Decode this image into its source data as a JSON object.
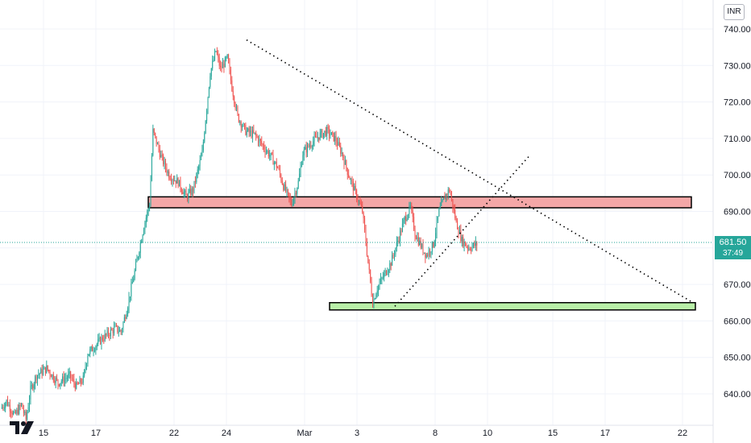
{
  "currency": "INR",
  "last_price": "681.50",
  "countdown": "37:49",
  "colors": {
    "up": "#26a69a",
    "down": "#ef5350",
    "resistance_fill": "#f4a7a7",
    "support_fill": "#b9f0a8",
    "grid": "#f0f3fa"
  },
  "chart_data": {
    "type": "candlestick",
    "title": "",
    "ylim": [
      631,
      744
    ],
    "y_ticks": [
      "740.00",
      "730.00",
      "720.00",
      "710.00",
      "700.00",
      "690.00",
      "680.00",
      "670.00",
      "660.00",
      "650.00",
      "640.00"
    ],
    "x_ticks": [
      "15",
      "17",
      "22",
      "24",
      "Mar",
      "3",
      "8",
      "10",
      "15",
      "17",
      "22"
    ],
    "grid": true,
    "price_path": [
      [
        0,
        636
      ],
      [
        5,
        638
      ],
      [
        12,
        634
      ],
      [
        18,
        637
      ],
      [
        22,
        633
      ],
      [
        26,
        641
      ],
      [
        31,
        645
      ],
      [
        40,
        647
      ],
      [
        50,
        643
      ],
      [
        60,
        645
      ],
      [
        66,
        642
      ],
      [
        72,
        644
      ],
      [
        76,
        651
      ],
      [
        88,
        655
      ],
      [
        100,
        658
      ],
      [
        105,
        657
      ],
      [
        110,
        663
      ],
      [
        118,
        675
      ],
      [
        125,
        686
      ],
      [
        130,
        692
      ],
      [
        133,
        712
      ],
      [
        140,
        705
      ],
      [
        147,
        700
      ],
      [
        155,
        698
      ],
      [
        162,
        694
      ],
      [
        168,
        696
      ],
      [
        176,
        706
      ],
      [
        183,
        728
      ],
      [
        188,
        734
      ],
      [
        192,
        729
      ],
      [
        198,
        732
      ],
      [
        202,
        724
      ],
      [
        207,
        716
      ],
      [
        214,
        712
      ],
      [
        222,
        711
      ],
      [
        229,
        708
      ],
      [
        236,
        705
      ],
      [
        242,
        702
      ],
      [
        247,
        697
      ],
      [
        254,
        692
      ],
      [
        260,
        698
      ],
      [
        264,
        706
      ],
      [
        272,
        709
      ],
      [
        279,
        711
      ],
      [
        285,
        712
      ],
      [
        292,
        710
      ],
      [
        298,
        706
      ],
      [
        304,
        700
      ],
      [
        310,
        695
      ],
      [
        316,
        690
      ],
      [
        321,
        676
      ],
      [
        325,
        665
      ],
      [
        329,
        669
      ],
      [
        334,
        672
      ],
      [
        341,
        676
      ],
      [
        348,
        683
      ],
      [
        353,
        688
      ],
      [
        358,
        691
      ],
      [
        362,
        684
      ],
      [
        368,
        680
      ],
      [
        372,
        678
      ],
      [
        378,
        681
      ],
      [
        383,
        690
      ],
      [
        388,
        694
      ],
      [
        392,
        696
      ],
      [
        398,
        687
      ],
      [
        403,
        682
      ],
      [
        409,
        680
      ],
      [
        416,
        681
      ]
    ],
    "levels": {
      "resistance": [
        691,
        694
      ],
      "support": [
        663,
        665
      ]
    },
    "trendlines": [
      {
        "from": [
          "2021-02-25",
          737
        ],
        "to": [
          "2021-03-22",
          665
        ],
        "style": "dotted"
      },
      {
        "from": [
          "2021-03-04",
          664
        ],
        "to": [
          "2021-03-12",
          705
        ],
        "style": "dotted"
      }
    ]
  }
}
